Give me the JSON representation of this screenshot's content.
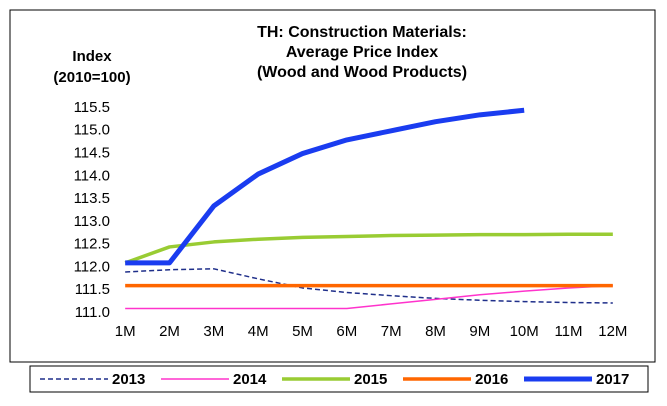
{
  "chart_data": {
    "type": "line",
    "title": [
      "TH: Construction Materials:",
      "Average Price Index",
      "(Wood and Wood Products)"
    ],
    "y_label": [
      "Index",
      "(2010=100)"
    ],
    "categories": [
      "1M",
      "2M",
      "3M",
      "4M",
      "5M",
      "6M",
      "7M",
      "8M",
      "9M",
      "10M",
      "11M",
      "12M"
    ],
    "ylim": [
      111,
      115.5
    ],
    "yticks": [
      {
        "value": 111,
        "label": "111.0"
      },
      111.5,
      {
        "value": 112,
        "label": "112.0"
      },
      112.5,
      {
        "value": 113,
        "label": "113.0"
      },
      113.5,
      {
        "value": 114,
        "label": "114.0"
      },
      114.5,
      {
        "value": 115,
        "label": "115.0"
      },
      115.5
    ],
    "legend": "bottom",
    "series": [
      {
        "name": "2013",
        "color": "#1f2f8a",
        "values": [
          111.9,
          111.95,
          111.97,
          111.75,
          111.55,
          111.45,
          111.38,
          111.32,
          111.28,
          111.25,
          111.23,
          111.22
        ]
      },
      {
        "name": "2014",
        "color": "#ff33cc",
        "values": [
          111.1,
          111.1,
          111.1,
          111.1,
          111.1,
          111.1,
          111.2,
          111.3,
          111.4,
          111.48,
          111.55,
          111.6
        ]
      },
      {
        "name": "2015",
        "color": "#99cc33",
        "values": [
          112.1,
          112.45,
          112.56,
          112.62,
          112.66,
          112.68,
          112.7,
          112.71,
          112.72,
          112.72,
          112.73,
          112.73
        ]
      },
      {
        "name": "2016",
        "color": "#ff6600",
        "values": [
          111.6,
          111.6,
          111.6,
          111.6,
          111.6,
          111.6,
          111.6,
          111.6,
          111.6,
          111.6,
          111.6,
          111.6
        ]
      },
      {
        "name": "2017",
        "color": "#1a3cf0",
        "values": [
          112.1,
          112.1,
          113.35,
          114.05,
          114.5,
          114.8,
          115.0,
          115.2,
          115.35,
          115.45,
          null,
          null
        ]
      }
    ]
  }
}
